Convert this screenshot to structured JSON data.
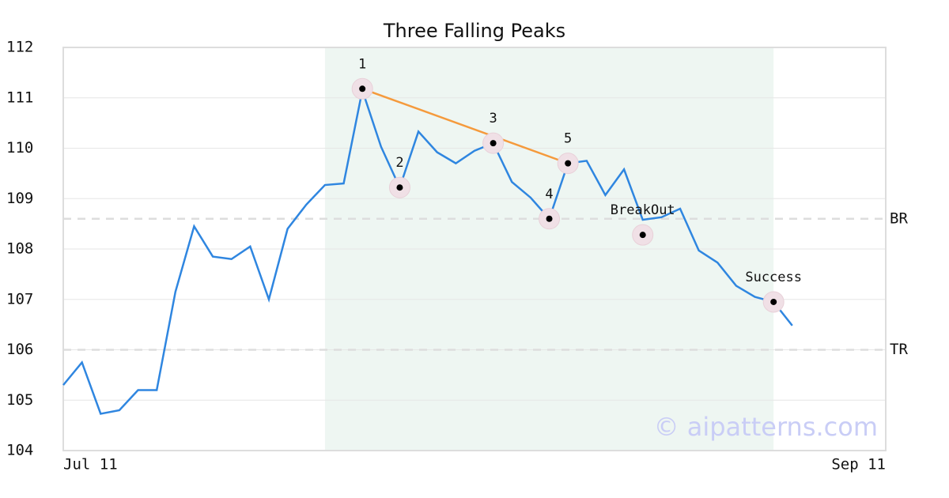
{
  "chart_data": {
    "type": "line",
    "title": "Three Falling Peaks",
    "x": [
      0,
      1,
      2,
      3,
      4,
      5,
      6,
      7,
      8,
      9,
      10,
      11,
      12,
      13,
      14,
      15,
      16,
      17,
      18,
      19,
      20,
      21,
      22,
      23,
      24,
      25,
      26,
      27,
      28,
      29,
      30,
      31,
      32,
      33,
      34,
      35,
      36,
      37,
      38,
      39
    ],
    "values": [
      105.3,
      105.75,
      104.73,
      104.8,
      105.2,
      105.2,
      107.15,
      108.45,
      107.85,
      107.8,
      108.05,
      107.0,
      108.4,
      108.88,
      109.27,
      109.3,
      111.15,
      110.03,
      109.22,
      110.33,
      109.92,
      109.7,
      109.95,
      110.1,
      109.33,
      109.02,
      108.6,
      109.7,
      109.75,
      109.07,
      109.58,
      108.58,
      108.63,
      108.8,
      107.97,
      107.73,
      107.27,
      107.05,
      106.95,
      106.48
    ],
    "color": "#2f86e0",
    "xlim": [
      0,
      44
    ],
    "xticks": [
      {
        "value": 0,
        "label": "Jul 11"
      },
      {
        "value": 44,
        "label": "Sep 11"
      }
    ],
    "ylim": [
      104,
      112
    ],
    "yticks": [
      104,
      105,
      106,
      107,
      108,
      109,
      110,
      111,
      112
    ],
    "grid": true,
    "highlight_x": [
      14,
      38
    ],
    "highlight_color": "#eef6f2",
    "markers": [
      {
        "label": "1",
        "x": 16,
        "y": 111.18
      },
      {
        "label": "2",
        "x": 18,
        "y": 109.22
      },
      {
        "label": "3",
        "x": 23,
        "y": 110.1
      },
      {
        "label": "4",
        "x": 26,
        "y": 108.6
      },
      {
        "label": "5",
        "x": 27,
        "y": 109.7
      },
      {
        "label": "BreakOut",
        "x": 31,
        "y": 108.28
      },
      {
        "label": "Success",
        "x": 38,
        "y": 106.95
      }
    ],
    "trend_color": "#f59a3c",
    "levels": [
      {
        "label": "BR",
        "value": 108.6
      },
      {
        "label": "TR",
        "value": 106
      }
    ],
    "watermark": "© aipatterns.com"
  }
}
